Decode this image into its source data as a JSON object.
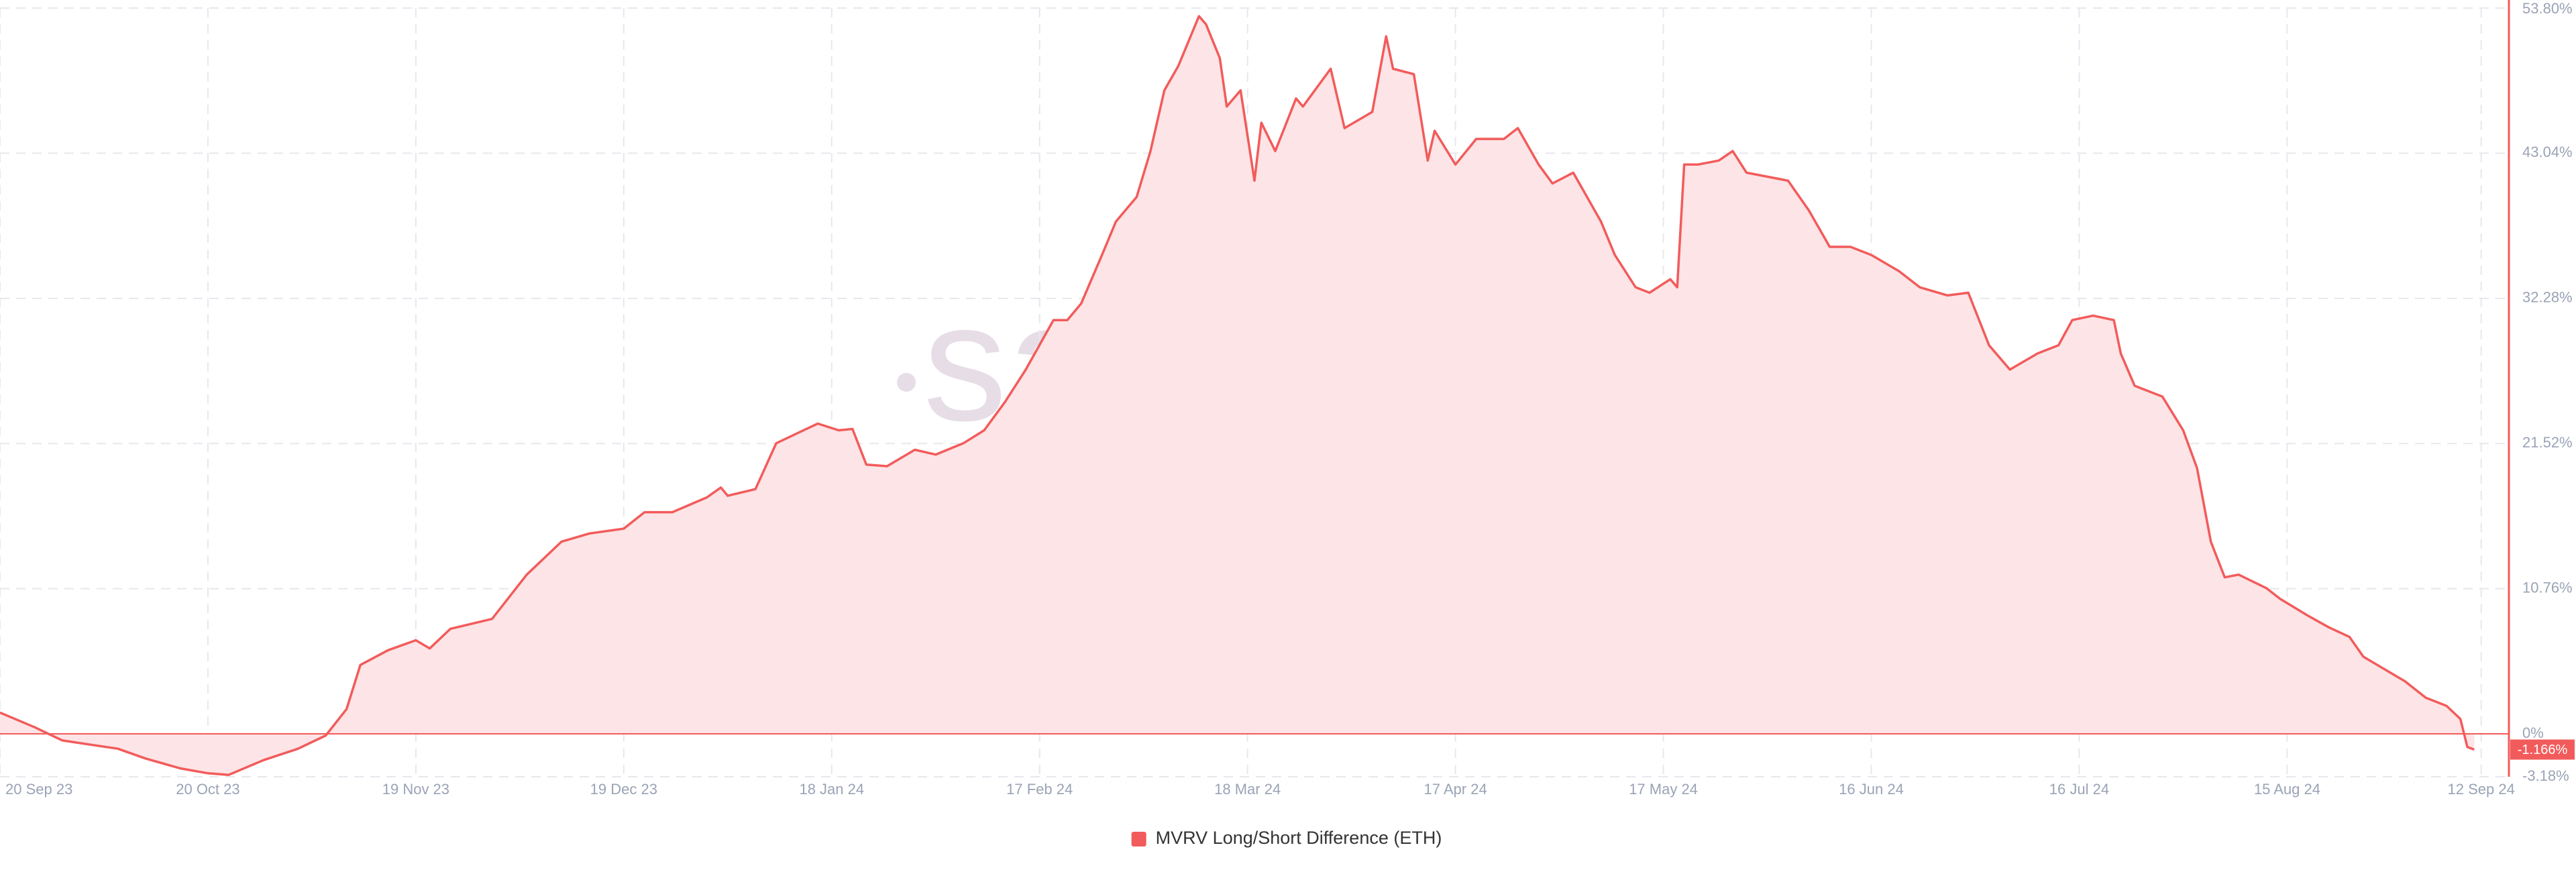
{
  "chart_data": {
    "type": "area",
    "watermark": "santiment",
    "x": [
      "2023-09-20",
      "2023-09-25",
      "2023-09-29",
      "2023-10-07",
      "2023-10-11",
      "2023-10-16",
      "2023-10-20",
      "2023-10-23",
      "2023-10-28",
      "2023-11-02",
      "2023-11-06",
      "2023-11-09",
      "2023-11-11",
      "2023-11-15",
      "2023-11-19",
      "2023-11-21",
      "2023-11-24",
      "2023-11-30",
      "2023-12-05",
      "2023-12-10",
      "2023-12-14",
      "2023-12-19",
      "2023-12-22",
      "2023-12-26",
      "2023-12-31",
      "2024-01-02",
      "2024-01-03",
      "2024-01-07",
      "2024-01-10",
      "2024-01-13",
      "2024-01-16",
      "2024-01-19",
      "2024-01-21",
      "2024-01-23",
      "2024-01-26",
      "2024-01-30",
      "2024-02-02",
      "2024-02-06",
      "2024-02-09",
      "2024-02-12",
      "2024-02-15",
      "2024-02-19",
      "2024-02-21",
      "2024-02-23",
      "2024-02-26",
      "2024-02-28",
      "2024-03-02",
      "2024-03-04",
      "2024-03-06",
      "2024-03-08",
      "2024-03-11",
      "2024-03-12",
      "2024-03-14",
      "2024-03-15",
      "2024-03-17",
      "2024-03-19",
      "2024-03-20",
      "2024-03-22",
      "2024-03-25",
      "2024-03-26",
      "2024-03-30",
      "2024-04-01",
      "2024-04-05",
      "2024-04-07",
      "2024-04-08",
      "2024-04-11",
      "2024-04-13",
      "2024-04-14",
      "2024-04-17",
      "2024-04-20",
      "2024-04-24",
      "2024-04-26",
      "2024-04-29",
      "2024-05-01",
      "2024-05-04",
      "2024-05-08",
      "2024-05-10",
      "2024-05-13",
      "2024-05-15",
      "2024-05-18",
      "2024-05-19",
      "2024-05-20",
      "2024-05-22",
      "2024-05-25",
      "2024-05-27",
      "2024-05-29",
      "2024-06-01",
      "2024-06-04",
      "2024-06-07",
      "2024-06-10",
      "2024-06-13",
      "2024-06-16",
      "2024-06-20",
      "2024-06-23",
      "2024-06-27",
      "2024-06-30",
      "2024-07-03",
      "2024-07-06",
      "2024-07-10",
      "2024-07-13",
      "2024-07-15",
      "2024-07-18",
      "2024-07-21",
      "2024-07-22",
      "2024-07-24",
      "2024-07-28",
      "2024-07-31",
      "2024-08-02",
      "2024-08-04",
      "2024-08-06",
      "2024-08-08",
      "2024-08-12",
      "2024-08-14",
      "2024-08-18",
      "2024-08-21",
      "2024-08-24",
      "2024-08-26",
      "2024-08-30",
      "2024-09-01",
      "2024-09-04",
      "2024-09-07",
      "2024-09-09",
      "2024-09-10",
      "2024-09-11"
    ],
    "series": [
      {
        "name": "MVRV Long/Short Difference (ETH)",
        "color": "#f25b5b",
        "fill": "#fde4e6",
        "values": [
          1.58,
          0.49,
          -0.49,
          -1.1,
          -1.83,
          -2.56,
          -2.92,
          -3.04,
          -1.95,
          -1.1,
          -0.12,
          1.83,
          5.11,
          6.2,
          6.94,
          6.33,
          7.79,
          8.52,
          11.8,
          14.24,
          14.85,
          15.21,
          16.43,
          16.43,
          17.53,
          18.26,
          17.65,
          18.14,
          21.54,
          22.27,
          23.0,
          22.5,
          22.6,
          19.96,
          19.84,
          21.06,
          20.7,
          21.54,
          22.5,
          24.6,
          27.0,
          30.67,
          30.67,
          31.9,
          35.5,
          37.97,
          39.8,
          43.2,
          47.7,
          49.5,
          53.2,
          52.6,
          50.1,
          46.5,
          47.7,
          41.0,
          45.3,
          43.2,
          47.1,
          46.5,
          49.3,
          44.9,
          46.1,
          51.7,
          49.3,
          48.9,
          42.5,
          44.7,
          42.2,
          44.1,
          44.1,
          44.9,
          42.2,
          40.8,
          41.6,
          37.97,
          35.5,
          33.1,
          32.7,
          33.7,
          33.1,
          42.2,
          42.2,
          42.5,
          43.2,
          41.6,
          41.3,
          41.0,
          38.8,
          36.1,
          36.1,
          35.5,
          34.3,
          33.1,
          32.5,
          32.7,
          28.8,
          27.0,
          28.2,
          28.8,
          30.67,
          31.0,
          30.67,
          28.2,
          25.8,
          25.0,
          22.5,
          19.7,
          14.24,
          11.6,
          11.8,
          10.8,
          10.0,
          8.76,
          7.9,
          7.18,
          5.72,
          4.5,
          3.9,
          2.68,
          2.07,
          1.1,
          -0.97,
          -1.166
        ]
      }
    ],
    "current_value": {
      "value": -1.166,
      "label": "-1.166%"
    },
    "xlim": [
      "2023-09-20",
      "2024-09-16"
    ],
    "xticks": [
      {
        "value": "2023-09-20",
        "label": "20 Sep 23"
      },
      {
        "value": "2023-10-20",
        "label": "20 Oct 23"
      },
      {
        "value": "2023-11-19",
        "label": "19 Nov 23"
      },
      {
        "value": "2023-12-19",
        "label": "19 Dec 23"
      },
      {
        "value": "2024-01-18",
        "label": "18 Jan 24"
      },
      {
        "value": "2024-02-17",
        "label": "17 Feb 24"
      },
      {
        "value": "2024-03-18",
        "label": "18 Mar 24"
      },
      {
        "value": "2024-04-17",
        "label": "17 Apr 24"
      },
      {
        "value": "2024-05-17",
        "label": "17 May 24"
      },
      {
        "value": "2024-06-16",
        "label": "16 Jun 24"
      },
      {
        "value": "2024-07-16",
        "label": "16 Jul 24"
      },
      {
        "value": "2024-08-15",
        "label": "15 Aug 24"
      },
      {
        "value": "2024-09-12",
        "label": "12 Sep 24"
      }
    ],
    "ylim": [
      -3.18,
      53.8
    ],
    "yticks": [
      {
        "value": 53.8,
        "label": "53.80%"
      },
      {
        "value": 43.04,
        "label": "43.04%"
      },
      {
        "value": 32.28,
        "label": "32.28%"
      },
      {
        "value": 21.52,
        "label": "21.52%"
      },
      {
        "value": 10.76,
        "label": "10.76%"
      },
      {
        "value": 0,
        "label": "0%"
      },
      {
        "value": -3.18,
        "label": "-3.18%"
      }
    ],
    "grid": true,
    "legend": "bottom"
  }
}
